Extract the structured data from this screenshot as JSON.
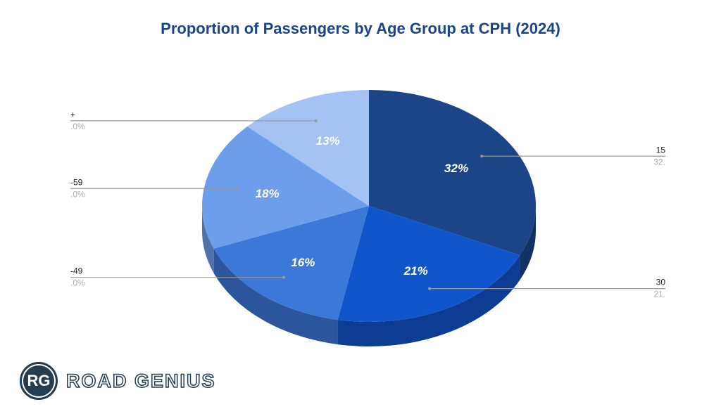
{
  "chart_data": {
    "type": "pie",
    "title": "Proportion of Passengers by Age Group at CPH (2024)",
    "three_d": true,
    "slices": [
      {
        "label_visible": "15",
        "value_visible": "32.",
        "value": 32,
        "pct_label": "32%",
        "color": "#1c4587",
        "side": "right"
      },
      {
        "label_visible": "30",
        "value_visible": "21.",
        "value": 21,
        "pct_label": "21%",
        "color": "#1155cc",
        "side": "right"
      },
      {
        "label_visible": "-49",
        "value_visible": ".0%",
        "value": 16,
        "pct_label": "16%",
        "color": "#3c78d8",
        "side": "left"
      },
      {
        "label_visible": "-59",
        "value_visible": ".0%",
        "value": 18,
        "pct_label": "18%",
        "color": "#6d9eeb",
        "side": "left"
      },
      {
        "label_visible": "+",
        "value_visible": ".0%",
        "value": 13,
        "pct_label": "13%",
        "color": "#a4c2f4",
        "side": "left"
      }
    ]
  },
  "logo": {
    "badge": "RG",
    "text": "ROAD GENIUS"
  }
}
